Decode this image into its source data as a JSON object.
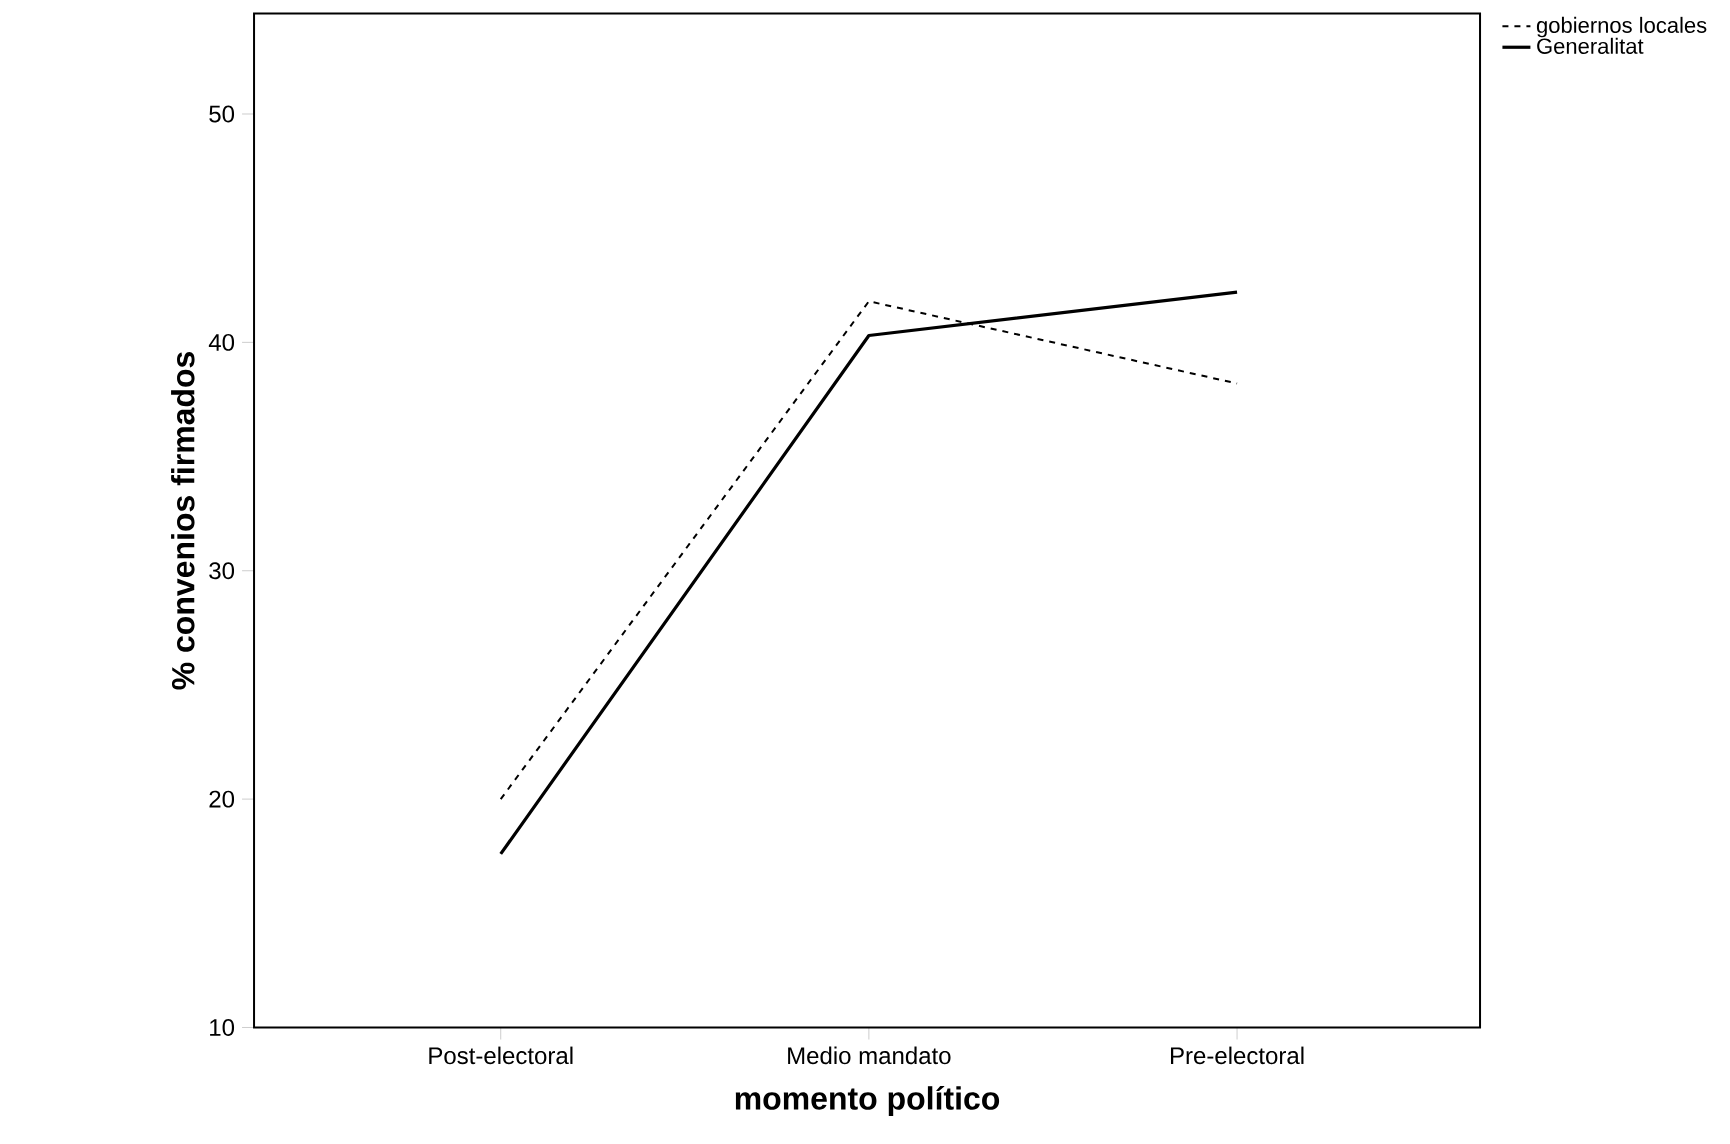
{
  "chart_data": {
    "type": "line",
    "xlabel": "momento político",
    "ylabel": "% convenios firmados",
    "categories": [
      "Post-electoral",
      "Medio mandato",
      "Pre-electoral"
    ],
    "series": [
      {
        "name": "gobiernos locales",
        "color": "#000000",
        "line_style": "dashed",
        "values": [
          20.0,
          41.8,
          38.2
        ]
      },
      {
        "name": "Generalitat",
        "color": "#000000",
        "line_style": "solid",
        "values": [
          17.6,
          40.3,
          42.2
        ]
      }
    ],
    "ylim": [
      10,
      54.4
    ],
    "yticks": [
      10,
      20,
      30,
      40,
      50
    ],
    "grid": false,
    "legend": "top right",
    "marker": "none"
  }
}
